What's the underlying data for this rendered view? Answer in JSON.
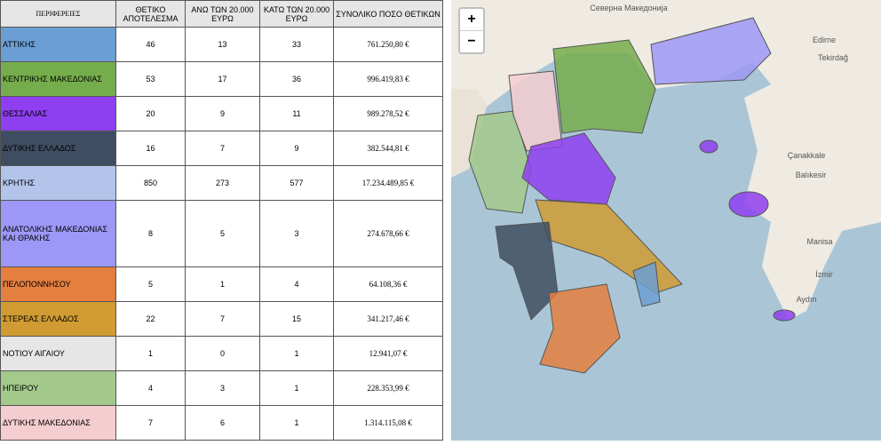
{
  "table": {
    "header": [
      "ΠΕΡΙΦΕΡΕΙΕΣ",
      "ΘΕΤΙΚΟ ΑΠΟΤΕΛΕΣΜΑ",
      "ΑΝΩ ΤΩΝ 20.000 ΕΥΡΩ",
      "ΚΑΤΩ ΤΩΝ 20.000 ΕΥΡΩ",
      "ΣΥΝΟΛΙΚΟ ΠΟΣΟ ΘΕΤΙΚΩΝ"
    ],
    "rows": [
      {
        "region": "ΑΤΤΙΚΗΣ",
        "color": "#6b9fd4",
        "positive": 46,
        "above": 13,
        "below": 33,
        "total": "761.250,80 €"
      },
      {
        "region": "ΚΕΝΤΡΙΚΗΣ ΜΑΚΕΔΟΝΙΑΣ",
        "color": "#76ad4c",
        "positive": 53,
        "above": 17,
        "below": 36,
        "total": "996.419,83 €"
      },
      {
        "region": "ΘΕΣΣΑΛΙΑΣ",
        "color": "#8e3ff0",
        "positive": 20,
        "above": 9,
        "below": 11,
        "total": "989.278,52 €"
      },
      {
        "region": "ΔΥΤΙΚΗΣ ΕΛΛΑΔΟΣ",
        "color": "#3f4d62",
        "positive": 16,
        "above": 7,
        "below": 9,
        "total": "382.544,81 €"
      },
      {
        "region": "ΚΡΗΤΗΣ",
        "color": "#b3c4ea",
        "positive": 850,
        "above": 273,
        "below": 577,
        "total": "17.234.489,85 €"
      },
      {
        "region": "ΑΝΑΤΟΛΙΚΗΣ ΜΑΚΕΔΟΝΙΑΣ ΚΑΙ ΘΡΑΚΗΣ",
        "color": "#9d98f7",
        "positive": 8,
        "above": 5,
        "below": 3,
        "total": "274.678,66 €"
      },
      {
        "region": "ΠΕΛΟΠΟΝΝΗΣΟΥ",
        "color": "#e47f40",
        "positive": 5,
        "above": 1,
        "below": 4,
        "total": "64.108,36 €"
      },
      {
        "region": "ΣΤΕΡΕΑΣ ΕΛΛΑΔΟΣ",
        "color": "#d09b33",
        "positive": 22,
        "above": 7,
        "below": 15,
        "total": "341.217,46 €"
      },
      {
        "region": "ΝΟΤΙΟΥ ΑΙΓΑΙΟΥ",
        "color": "#e6e6e6",
        "positive": 1,
        "above": 0,
        "below": 1,
        "total": "12.941,07 €"
      },
      {
        "region": "ΗΠΕΙΡΟΥ",
        "color": "#a3c98b",
        "positive": 4,
        "above": 3,
        "below": 1,
        "total": "228.353,99 €"
      },
      {
        "region": "ΔΥΤΙΚΗΣ ΜΑΚΕΔΟΝΙΑΣ",
        "color": "#f4cdd0",
        "positive": 7,
        "above": 6,
        "below": 1,
        "total": "1.314.115,08 €"
      }
    ]
  },
  "map": {
    "zoom_in": "+",
    "zoom_out": "−",
    "labels": [
      "Северна Македонија",
      "Edirne",
      "Tekirdağ",
      "Çanakkale",
      "Balıkesir",
      "Manisa",
      "İzmir",
      "Aydın"
    ]
  }
}
